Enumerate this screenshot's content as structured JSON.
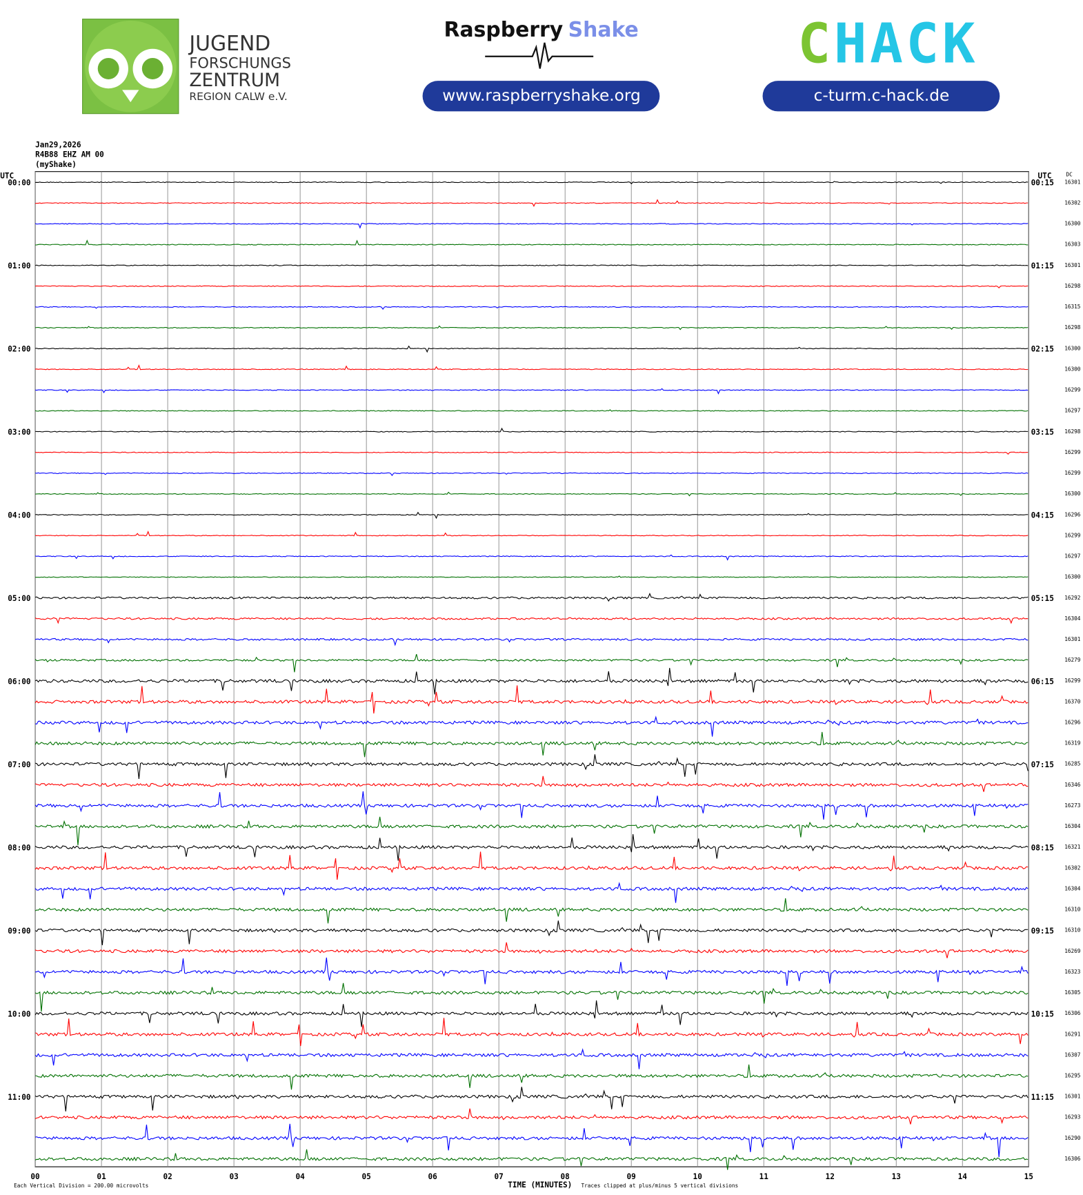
{
  "header": {
    "date": "Jan29,2026",
    "station": "R4B88 EHZ AM 00",
    "source": "(myShake)",
    "utc_left": "UTC",
    "utc_right": "UTC",
    "dc": "DC"
  },
  "logos": {
    "jfz_1": "JUGEND",
    "jfz_2": "FORSCHUNGS",
    "jfz_3": "ZENTRUM",
    "jfz_4": "REGION CALW e.V.",
    "rs_1": "Raspberry",
    "rs_2": "Shake",
    "rs_url": "www.raspberryshake.org",
    "chack_1": "C",
    "chack_2": "HACK",
    "chack_url": "c-turm.c-hack.de"
  },
  "plot": {
    "left_labels": [
      "00:00",
      "01:00",
      "02:00",
      "03:00",
      "04:00",
      "05:00",
      "06:00",
      "07:00",
      "08:00",
      "09:00",
      "10:00",
      "11:00"
    ],
    "right_labels": [
      "00:15",
      "01:15",
      "02:15",
      "03:15",
      "04:15",
      "05:15",
      "06:15",
      "07:15",
      "08:15",
      "09:15",
      "10:15",
      "11:15"
    ],
    "dc_values": [
      16301,
      16302,
      16300,
      16303,
      16301,
      16298,
      16315,
      16298,
      16300,
      16300,
      16299,
      16297,
      16298,
      16299,
      16299,
      16300,
      16296,
      16299,
      16297,
      16300,
      16292,
      16304,
      16301,
      16279,
      16299,
      16370,
      16296,
      16319,
      16285,
      16346,
      16273,
      16304,
      16321,
      16302,
      16304,
      16310,
      16310,
      16269,
      16323,
      16305,
      16306,
      16291,
      16307,
      16295,
      16301,
      16293,
      16290,
      16306
    ],
    "x_ticks": [
      "00",
      "01",
      "02",
      "03",
      "04",
      "05",
      "06",
      "07",
      "08",
      "09",
      "10",
      "11",
      "12",
      "13",
      "14",
      "15"
    ],
    "x_label": "TIME (MINUTES)",
    "scale_note": "Each Vertical Division = 200.00 microvolts",
    "clip_note": "Traces clipped at plus/minus 5 vertical divisions",
    "trace_colors": [
      "#000000",
      "#ff0000",
      "#0000ff",
      "#007000"
    ]
  }
}
